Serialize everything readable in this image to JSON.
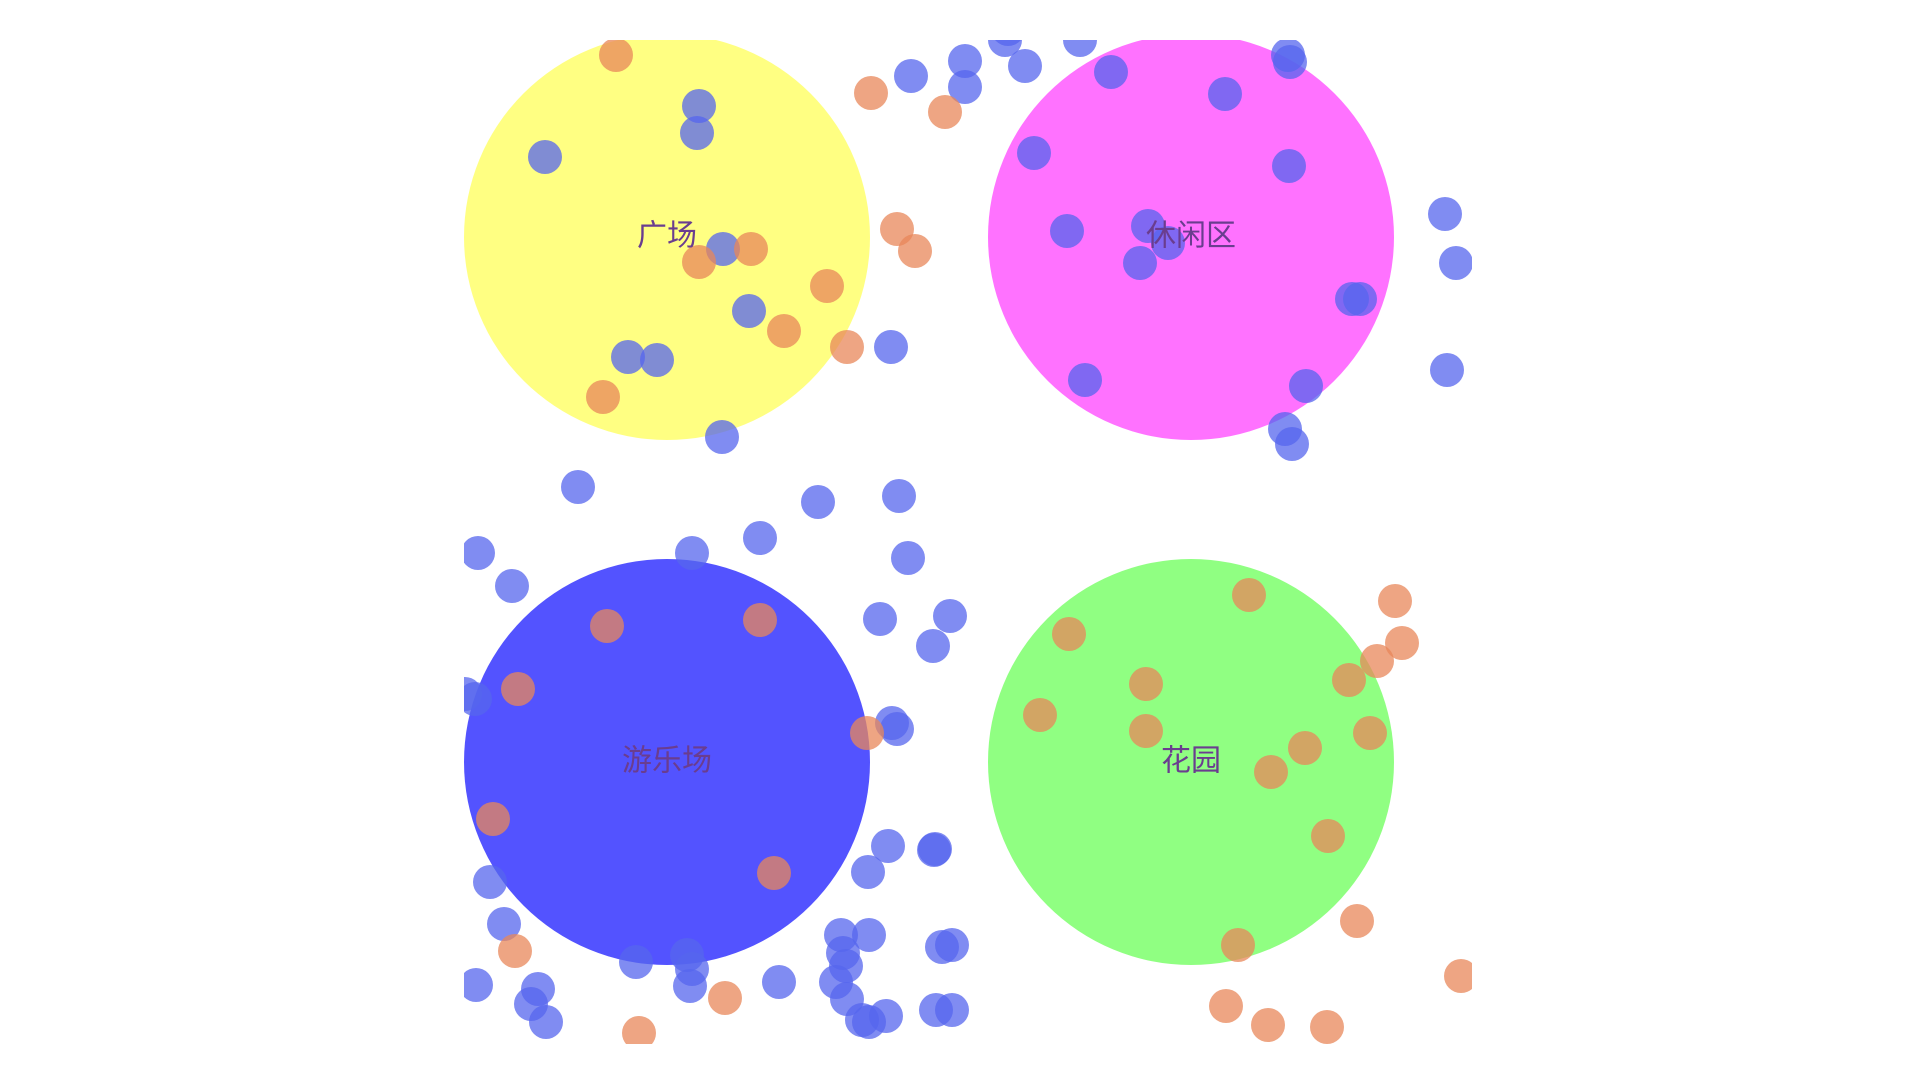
{
  "scene": {
    "zones": [
      {
        "id": "plaza",
        "label": "广场",
        "color": "#ffff66"
      },
      {
        "id": "leisure",
        "label": "休闲区",
        "color": "#ff66ff"
      },
      {
        "id": "playground",
        "label": "游乐场",
        "color": "#4444ff"
      },
      {
        "id": "garden",
        "label": "花园",
        "color": "#77ff66"
      }
    ],
    "agent_colors": {
      "blue": "#5566ee",
      "orange": "#e8875a"
    },
    "label_color": "#6a3d8f"
  }
}
